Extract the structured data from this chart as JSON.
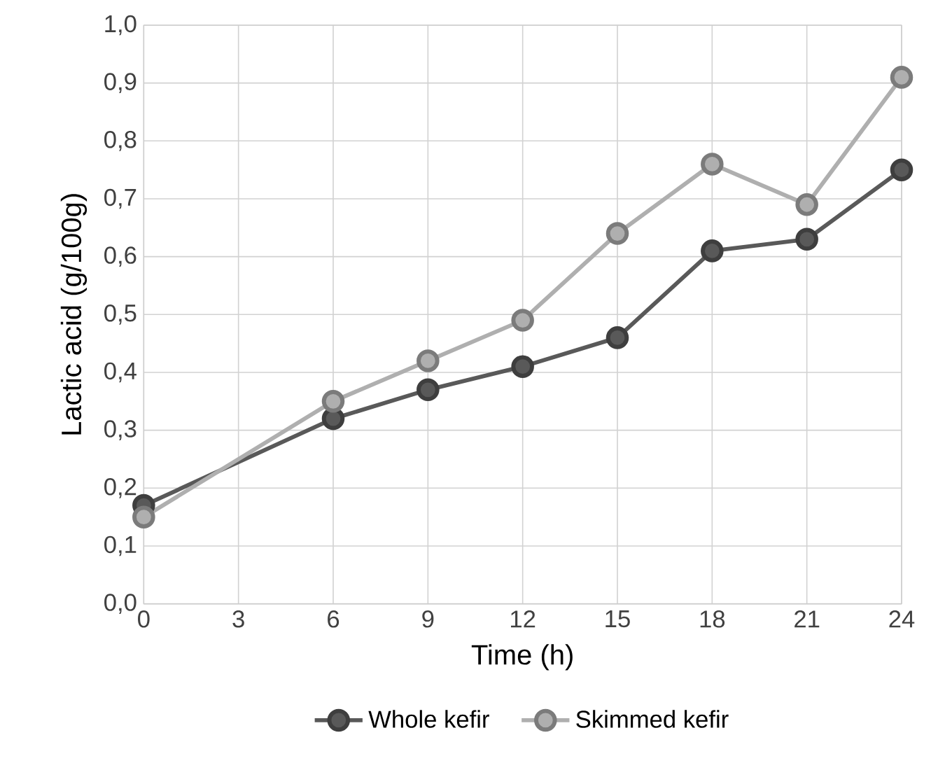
{
  "chart_data": {
    "type": "line",
    "xlabel": "Time (h)",
    "ylabel": "Lactic acid (g/100g)",
    "x": [
      0,
      6,
      9,
      12,
      15,
      18,
      21,
      24
    ],
    "series": [
      {
        "name": "Whole kefir",
        "color": "#595959",
        "values": [
          0.17,
          0.32,
          0.37,
          0.41,
          0.46,
          0.61,
          0.63,
          0.75
        ]
      },
      {
        "name": "Skimmed kefir",
        "color": "#afafaf",
        "values": [
          0.15,
          0.35,
          0.42,
          0.49,
          0.64,
          0.76,
          0.69,
          0.91
        ]
      }
    ],
    "xlim": [
      0,
      24
    ],
    "xticks": [
      0,
      3,
      6,
      9,
      12,
      15,
      18,
      21,
      24
    ],
    "ylim": [
      0,
      1
    ],
    "yticks": [
      {
        "value": 0,
        "label": "0,0"
      },
      {
        "value": 0.1,
        "label": "0,1"
      },
      {
        "value": 0.2,
        "label": "0,2"
      },
      {
        "value": 0.3,
        "label": "0,3"
      },
      {
        "value": 0.4,
        "label": "0,4"
      },
      {
        "value": 0.5,
        "label": "0,5"
      },
      {
        "value": 0.6,
        "label": "0,6"
      },
      {
        "value": 0.7,
        "label": "0,7"
      },
      {
        "value": 0.8,
        "label": "0,8"
      },
      {
        "value": 0.9,
        "label": "0,9"
      },
      {
        "value": 1,
        "label": "1,0"
      }
    ],
    "grid": true,
    "legend": "bottom",
    "marker": "circle",
    "line_style": "solid"
  }
}
